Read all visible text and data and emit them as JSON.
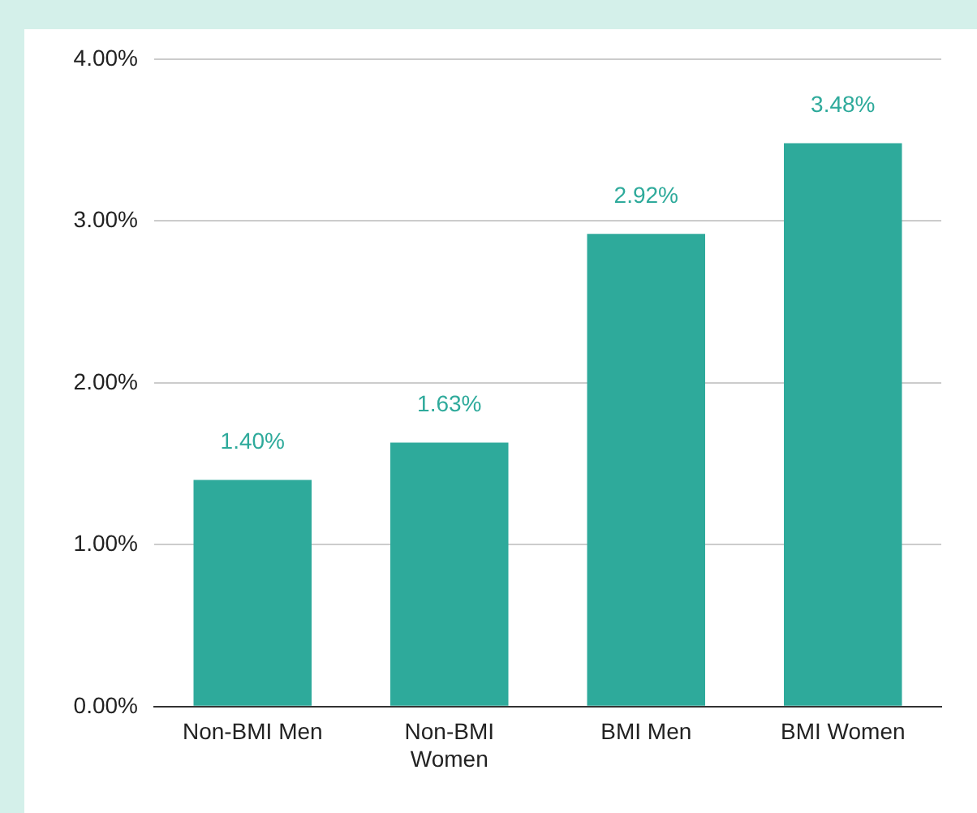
{
  "chart_data": {
    "type": "bar",
    "categories": [
      "Non-BMI Men",
      "Non-BMI Women",
      "BMI Men",
      "BMI Women"
    ],
    "values": [
      1.4,
      1.63,
      2.92,
      3.48
    ],
    "color": "#2eaa9b",
    "value_labels": [
      "1.40%",
      "1.63%",
      "2.92%",
      "3.48%"
    ],
    "ylim": [
      0,
      4
    ],
    "yticks": [
      {
        "value": 0,
        "label": "0.00%"
      },
      {
        "value": 1,
        "label": "1.00%"
      },
      {
        "value": 2,
        "label": "2.00%"
      },
      {
        "value": 3,
        "label": "3.00%"
      },
      {
        "value": 4,
        "label": "4.00%"
      }
    ],
    "grid": "y",
    "legend": false
  }
}
